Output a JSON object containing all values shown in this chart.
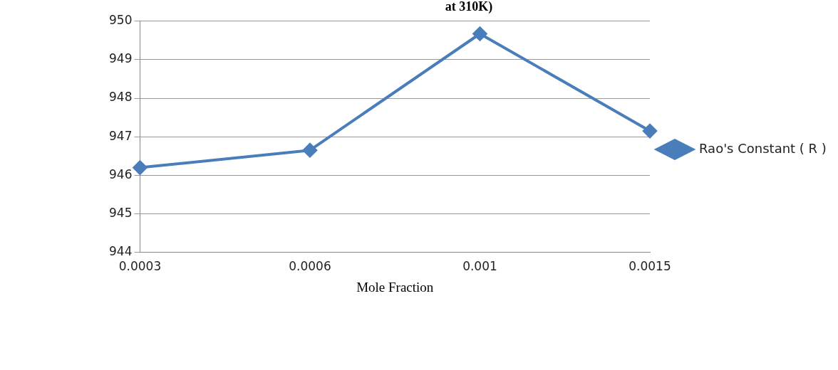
{
  "chart_data": {
    "type": "line",
    "title": "at 310K)",
    "xlabel": "Mole Fraction",
    "categories": [
      "0.0003",
      "0.0006",
      "0.001",
      "0.0015"
    ],
    "series": [
      {
        "name": "Rao's Constant ( R )",
        "color": "#4a7ebb",
        "values": [
          946.2,
          946.65,
          949.67,
          947.15
        ]
      }
    ],
    "ylim": [
      944,
      950
    ],
    "yticks": [
      944,
      945,
      946,
      947,
      948,
      949,
      950
    ],
    "grid": "y",
    "legend": "right",
    "marker": "diamond",
    "line_style": "solid"
  }
}
